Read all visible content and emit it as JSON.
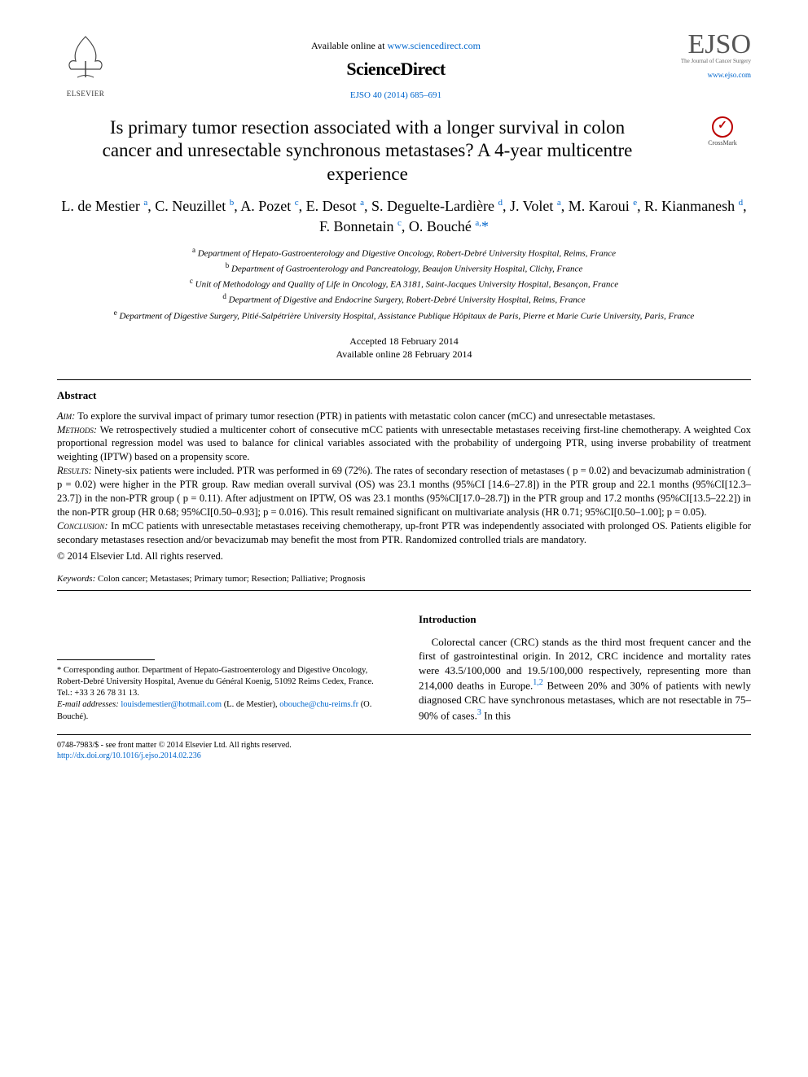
{
  "header": {
    "elsevier_label": "ELSEVIER",
    "available_prefix": "Available online at ",
    "available_link": "www.sciencedirect.com",
    "sciencedirect": "ScienceDirect",
    "citation": "EJSO 40 (2014) 685–691",
    "journal_abbrev": "EJSO",
    "journal_sub": "The Journal of Cancer Surgery",
    "journal_link": "www.ejso.com",
    "crossmark_label": "CrossMark"
  },
  "article": {
    "title": "Is primary tumor resection associated with a longer survival in colon cancer and unresectable synchronous metastases? A 4-year multicentre experience",
    "authors_html": "L. de Mestier <sup>a</sup>, C. Neuzillet <sup>b</sup>, A. Pozet <sup>c</sup>, E. Desot <sup>a</sup>, S. Deguelte-Lardière <sup>d</sup>, J. Volet <sup>a</sup>, M. Karoui <sup>e</sup>, R. Kianmanesh <sup>d</sup>, F. Bonnetain <sup>c</sup>, O. Bouché <sup>a,</sup><span class='star-sup'>*</span>",
    "affiliations": [
      {
        "sup": "a",
        "text": "Department of Hepato-Gastroenterology and Digestive Oncology, Robert-Debré University Hospital, Reims, France"
      },
      {
        "sup": "b",
        "text": "Department of Gastroenterology and Pancreatology, Beaujon University Hospital, Clichy, France"
      },
      {
        "sup": "c",
        "text": "Unit of Methodology and Quality of Life in Oncology, EA 3181, Saint-Jacques University Hospital, Besançon, France"
      },
      {
        "sup": "d",
        "text": "Department of Digestive and Endocrine Surgery, Robert-Debré University Hospital, Reims, France"
      },
      {
        "sup": "e",
        "text": "Department of Digestive Surgery, Pitié-Salpétrière University Hospital, Assistance Publique Hôpitaux de Paris, Pierre et Marie Curie University, Paris, France"
      }
    ],
    "accepted": "Accepted 18 February 2014",
    "online": "Available online 28 February 2014"
  },
  "abstract": {
    "heading": "Abstract",
    "aim_label": "Aim:",
    "aim": " To explore the survival impact of primary tumor resection (PTR) in patients with metastatic colon cancer (mCC) and unresectable metastases.",
    "methods_label": "Methods:",
    "methods": " We retrospectively studied a multicenter cohort of consecutive mCC patients with unresectable metastases receiving first-line chemotherapy. A weighted Cox proportional regression model was used to balance for clinical variables associated with the probability of undergoing PTR, using inverse probability of treatment weighting (IPTW) based on a propensity score.",
    "results_label": "Results:",
    "results": " Ninety-six patients were included. PTR was performed in 69 (72%). The rates of secondary resection of metastases ( p = 0.02) and bevacizumab administration ( p = 0.02) were higher in the PTR group. Raw median overall survival (OS) was 23.1 months (95%CI [14.6–27.8]) in the PTR group and 22.1 months (95%CI[12.3–23.7]) in the non-PTR group ( p = 0.11). After adjustment on IPTW, OS was 23.1 months (95%CI[17.0–28.7]) in the PTR group and 17.2 months (95%CI[13.5–22.2]) in the non-PTR group (HR 0.68; 95%CI[0.50–0.93]; p = 0.016). This result remained significant on multivariate analysis (HR 0.71; 95%CI[0.50–1.00]; p = 0.05).",
    "conclusion_label": "Conclusion:",
    "conclusion": " In mCC patients with unresectable metastases receiving chemotherapy, up-front PTR was independently associated with prolonged OS. Patients eligible for secondary metastases resection and/or bevacizumab may benefit the most from PTR. Randomized controlled trials are mandatory.",
    "copyright": "© 2014 Elsevier Ltd. All rights reserved.",
    "keywords_label": "Keywords:",
    "keywords": " Colon cancer; Metastases; Primary tumor; Resection; Palliative; Prognosis"
  },
  "footnote": {
    "corr": "* Corresponding author. Department of Hepato-Gastroenterology and Digestive Oncology, Robert-Debré University Hospital, Avenue du Général Koenig, 51092 Reims Cedex, France. Tel.: +33 3 26 78 31 13.",
    "email_label": "E-mail addresses:",
    "email1": "louisdemestier@hotmail.com",
    "email1_who": " (L. de Mestier), ",
    "email2": "obouche@chu-reims.fr",
    "email2_who": " (O. Bouché)."
  },
  "intro": {
    "heading": "Introduction",
    "body_html": "Colorectal cancer (CRC) stands as the third most frequent cancer and the first of gastrointestinal origin. In 2012, CRC incidence and mortality rates were 43.5/100,000 and 19.5/100,000 respectively, representing more than 214,000 deaths in Europe.<span class='ref'>1,2</span> Between 20% and 30% of patients with newly diagnosed CRC have synchronous metastases, which are not resectable in 75–90% of cases.<span class='ref'>3</span> In this"
  },
  "footer": {
    "issn_line": "0748-7983/$ - see front matter © 2014 Elsevier Ltd. All rights reserved.",
    "doi": "http://dx.doi.org/10.1016/j.ejso.2014.02.236"
  },
  "colors": {
    "link": "#0066cc",
    "text": "#000000",
    "crossmark_ring": "#b00020"
  }
}
